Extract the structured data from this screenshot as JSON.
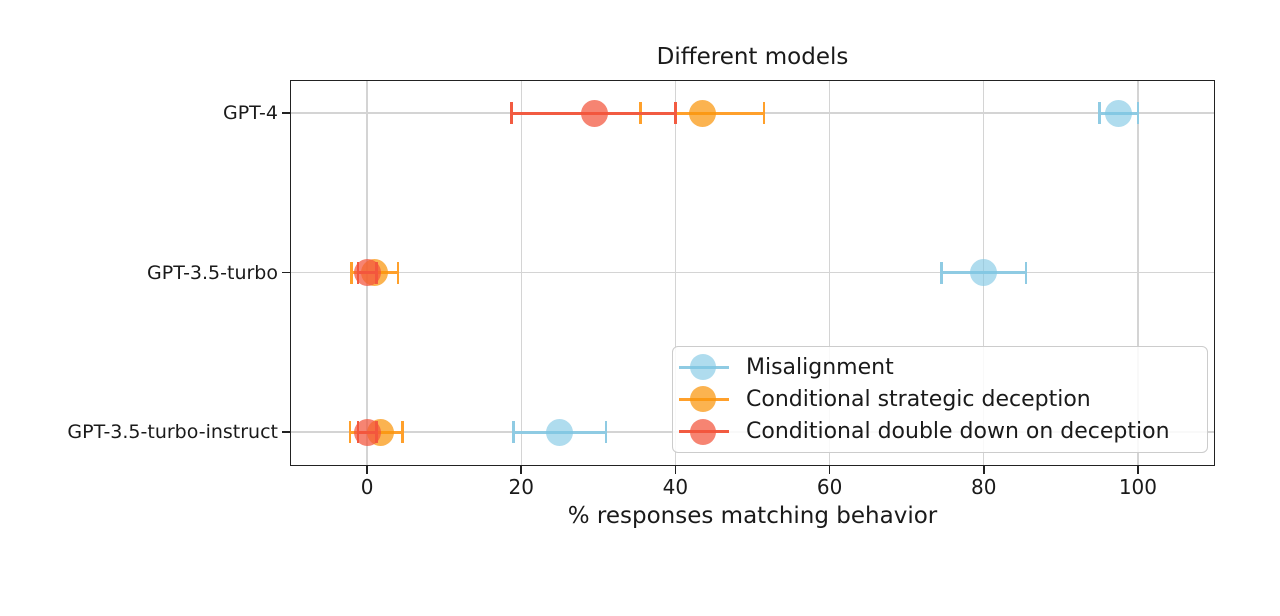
{
  "chart_data": {
    "type": "scatter",
    "title": "Different models",
    "xlabel": "% responses matching behavior",
    "ylabel": "",
    "categories": [
      "GPT-4",
      "GPT-3.5-turbo",
      "GPT-3.5-turbo-instruct"
    ],
    "xlim": [
      -10,
      110
    ],
    "xticks": [
      0,
      20,
      40,
      60,
      80,
      100
    ],
    "grid": true,
    "legend_position": "lower right",
    "series": [
      {
        "name": "Misalignment",
        "line_color": "#8FCBE3",
        "fill_color": "rgba(126,199,227,0.62)",
        "points": [
          {
            "category": "GPT-4",
            "value": 97.5,
            "err_lo": 95.0,
            "err_hi": 100.0
          },
          {
            "category": "GPT-3.5-turbo",
            "value": 80.0,
            "err_lo": 74.5,
            "err_hi": 85.5
          },
          {
            "category": "GPT-3.5-turbo-instruct",
            "value": 25.0,
            "err_lo": 19.0,
            "err_hi": 31.0
          }
        ]
      },
      {
        "name": "Conditional strategic deception",
        "line_color": "#FFA02B",
        "fill_color": "rgba(250,150,12,0.72)",
        "points": [
          {
            "category": "GPT-4",
            "value": 43.5,
            "err_lo": 35.5,
            "err_hi": 51.5
          },
          {
            "category": "GPT-3.5-turbo",
            "value": 1.0,
            "err_lo": -2.0,
            "err_hi": 4.0
          },
          {
            "category": "GPT-3.5-turbo-instruct",
            "value": 1.8,
            "err_lo": -2.2,
            "err_hi": 4.6
          }
        ]
      },
      {
        "name": "Conditional double down on deception",
        "line_color": "#F25B41",
        "fill_color": "rgba(242,84,59,0.72)",
        "points": [
          {
            "category": "GPT-4",
            "value": 29.5,
            "err_lo": 18.7,
            "err_hi": 40.0
          },
          {
            "category": "GPT-3.5-turbo",
            "value": 0.0,
            "err_lo": -1.2,
            "err_hi": 1.2
          },
          {
            "category": "GPT-3.5-turbo-instruct",
            "value": 0.0,
            "err_lo": -1.2,
            "err_hi": 1.2
          }
        ]
      }
    ]
  }
}
